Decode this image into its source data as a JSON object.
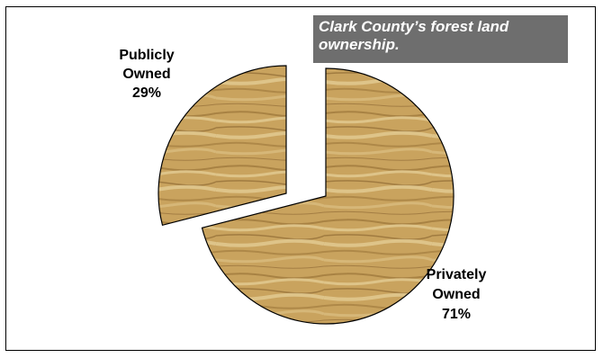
{
  "chart_data": {
    "type": "pie",
    "title": "Clark County’s forest land ownership.",
    "slices": [
      {
        "label_line1": "Publicly",
        "label_line2": "Owned",
        "value_text": "29%",
        "value": 29
      },
      {
        "label_line1": "Privately",
        "label_line2": "Owned",
        "value_text": "71%",
        "value": 71
      }
    ],
    "exploded": true,
    "fill": "wood-grain texture",
    "colors": {
      "wood_base": "#c9a35e",
      "wood_light": "#e2c88c",
      "wood_dark": "#8f6a33",
      "title_bg": "#6e6e6e"
    }
  }
}
